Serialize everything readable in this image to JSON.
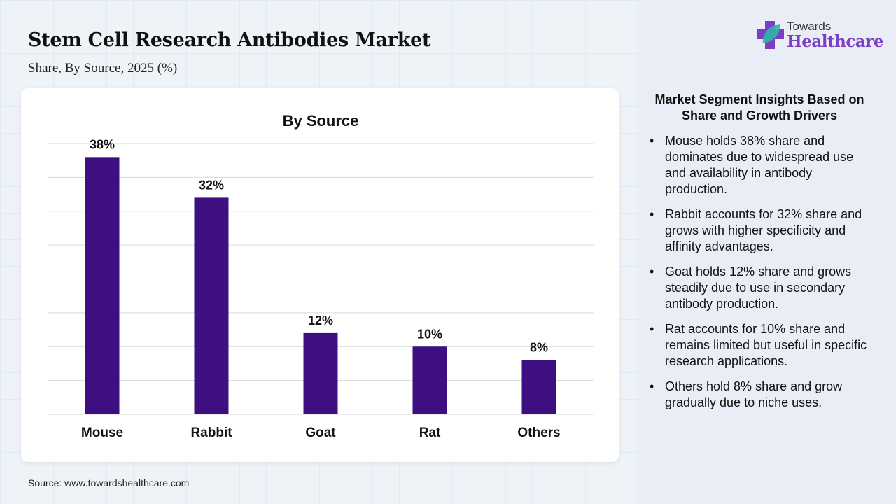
{
  "header": {
    "title": "Stem Cell Research Antibodies Market",
    "subtitle": "Share, By Source, 2025 (%)"
  },
  "logo": {
    "line1": "Towards",
    "line2": "Healthcare",
    "icon": "medical-cross-leaf-icon"
  },
  "source": "Source: www.towardshealthcare.com",
  "insights": {
    "heading": "Market Segment Insights Based on Share and Growth Drivers",
    "items": [
      "Mouse holds 38% share and dominates due to widespread use and availability in antibody production.",
      "Rabbit accounts for 32% share and grows with higher specificity and affinity advantages.",
      "Goat holds 12% share and grows steadily due to use in secondary antibody production.",
      "Rat accounts for 10% share and remains limited but useful in specific research applications.",
      "Others hold 8% share and grow gradually due to niche uses."
    ]
  },
  "chart_data": {
    "type": "bar",
    "title": "By Source",
    "categories": [
      "Mouse",
      "Rabbit",
      "Goat",
      "Rat",
      "Others"
    ],
    "values": [
      38,
      32,
      12,
      10,
      8
    ],
    "data_labels": [
      "38%",
      "32%",
      "12%",
      "10%",
      "8%"
    ],
    "ylim": [
      0,
      40
    ],
    "ytick_step": 5,
    "grid": true,
    "yaxis_labels_shown": false,
    "bar_color": "#3d0f80"
  }
}
